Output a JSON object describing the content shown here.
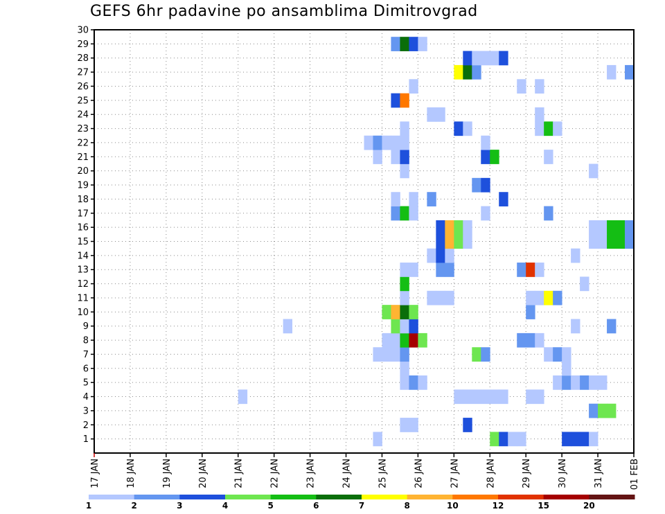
{
  "chart_data": {
    "type": "heatmap",
    "title": "GEFS 6hr padavine po ansamblima Dimitrovgrad",
    "xlabel": "",
    "ylabel": "",
    "x_ticks": [
      "17 JAN",
      "18 JAN",
      "19 JAN",
      "20 JAN",
      "21 JAN",
      "22 JAN",
      "23 JAN",
      "24 JAN",
      "25 JAN",
      "26 JAN",
      "27 JAN",
      "28 JAN",
      "29 JAN",
      "30 JAN",
      "31 JAN",
      "01 FEB"
    ],
    "y_ticks": [
      1,
      2,
      3,
      4,
      5,
      6,
      7,
      8,
      9,
      10,
      11,
      12,
      13,
      14,
      15,
      16,
      17,
      18,
      19,
      20,
      21,
      22,
      23,
      24,
      25,
      26,
      27,
      28,
      29,
      30
    ],
    "xlim_days": [
      0,
      15
    ],
    "ylim": [
      0,
      30
    ],
    "time_step_hours": 6,
    "colorbar": {
      "labels": [
        "1",
        "2",
        "3",
        "4",
        "5",
        "6",
        "7",
        "8",
        "10",
        "12",
        "15",
        "20"
      ],
      "colors": [
        "#b4c8ff",
        "#6496f0",
        "#1e50dc",
        "#6ee650",
        "#14be14",
        "#0a6e0a",
        "#ffff00",
        "#ffb432",
        "#ff7800",
        "#e13200",
        "#a50000",
        "#641414"
      ]
    },
    "cell_units": "x = day offset from 17 JAN 00Z (6h steps); y = ensemble member; c = color class index (0..11)",
    "cells": [
      {
        "x": 7.75,
        "y": 1,
        "c": 0
      },
      {
        "x": 11.0,
        "y": 1,
        "c": 3
      },
      {
        "x": 11.25,
        "y": 1,
        "c": 2
      },
      {
        "x": 11.5,
        "y": 1,
        "c": 0
      },
      {
        "x": 11.75,
        "y": 1,
        "c": 0
      },
      {
        "x": 13.0,
        "y": 1,
        "c": 2
      },
      {
        "x": 13.25,
        "y": 1,
        "c": 2
      },
      {
        "x": 13.5,
        "y": 1,
        "c": 2
      },
      {
        "x": 13.75,
        "y": 1,
        "c": 0
      },
      {
        "x": 8.5,
        "y": 2,
        "c": 0
      },
      {
        "x": 8.75,
        "y": 2,
        "c": 0
      },
      {
        "x": 10.25,
        "y": 2,
        "c": 2
      },
      {
        "x": 13.75,
        "y": 3,
        "c": 1
      },
      {
        "x": 14.0,
        "y": 3,
        "c": 3
      },
      {
        "x": 14.25,
        "y": 3,
        "c": 3
      },
      {
        "x": 4.0,
        "y": 4,
        "c": 0
      },
      {
        "x": 10.0,
        "y": 4,
        "c": 0
      },
      {
        "x": 10.25,
        "y": 4,
        "c": 0
      },
      {
        "x": 10.5,
        "y": 4,
        "c": 0
      },
      {
        "x": 10.75,
        "y": 4,
        "c": 0
      },
      {
        "x": 11.0,
        "y": 4,
        "c": 0
      },
      {
        "x": 11.25,
        "y": 4,
        "c": 0
      },
      {
        "x": 12.0,
        "y": 4,
        "c": 0
      },
      {
        "x": 12.25,
        "y": 4,
        "c": 0
      },
      {
        "x": 8.5,
        "y": 5,
        "c": 0
      },
      {
        "x": 8.75,
        "y": 5,
        "c": 1
      },
      {
        "x": 9.0,
        "y": 5,
        "c": 0
      },
      {
        "x": 12.75,
        "y": 5,
        "c": 0
      },
      {
        "x": 13.0,
        "y": 5,
        "c": 1
      },
      {
        "x": 13.25,
        "y": 5,
        "c": 0
      },
      {
        "x": 13.5,
        "y": 5,
        "c": 1
      },
      {
        "x": 13.75,
        "y": 5,
        "c": 0
      },
      {
        "x": 14.0,
        "y": 5,
        "c": 0
      },
      {
        "x": 8.5,
        "y": 6,
        "c": 0
      },
      {
        "x": 13.0,
        "y": 6,
        "c": 0
      },
      {
        "x": 7.75,
        "y": 7,
        "c": 0
      },
      {
        "x": 8.0,
        "y": 7,
        "c": 0
      },
      {
        "x": 8.25,
        "y": 7,
        "c": 0
      },
      {
        "x": 8.5,
        "y": 7,
        "c": 1
      },
      {
        "x": 10.5,
        "y": 7,
        "c": 3
      },
      {
        "x": 10.75,
        "y": 7,
        "c": 1
      },
      {
        "x": 12.5,
        "y": 7,
        "c": 0
      },
      {
        "x": 12.75,
        "y": 7,
        "c": 1
      },
      {
        "x": 13.0,
        "y": 7,
        "c": 0
      },
      {
        "x": 8.0,
        "y": 8,
        "c": 0
      },
      {
        "x": 8.25,
        "y": 8,
        "c": 0
      },
      {
        "x": 8.5,
        "y": 8,
        "c": 4
      },
      {
        "x": 8.75,
        "y": 8,
        "c": 10
      },
      {
        "x": 9.0,
        "y": 8,
        "c": 3
      },
      {
        "x": 11.75,
        "y": 8,
        "c": 1
      },
      {
        "x": 12.0,
        "y": 8,
        "c": 1
      },
      {
        "x": 12.25,
        "y": 8,
        "c": 0
      },
      {
        "x": 5.25,
        "y": 9,
        "c": 0
      },
      {
        "x": 8.25,
        "y": 9,
        "c": 3
      },
      {
        "x": 8.5,
        "y": 9,
        "c": 0
      },
      {
        "x": 8.75,
        "y": 9,
        "c": 2
      },
      {
        "x": 13.25,
        "y": 9,
        "c": 0
      },
      {
        "x": 14.25,
        "y": 9,
        "c": 1
      },
      {
        "x": 8.0,
        "y": 10,
        "c": 3
      },
      {
        "x": 8.25,
        "y": 10,
        "c": 7
      },
      {
        "x": 8.5,
        "y": 10,
        "c": 5
      },
      {
        "x": 8.75,
        "y": 10,
        "c": 3
      },
      {
        "x": 12.0,
        "y": 10,
        "c": 1
      },
      {
        "x": 8.5,
        "y": 11,
        "c": 0
      },
      {
        "x": 9.25,
        "y": 11,
        "c": 0
      },
      {
        "x": 9.5,
        "y": 11,
        "c": 0
      },
      {
        "x": 9.75,
        "y": 11,
        "c": 0
      },
      {
        "x": 12.0,
        "y": 11,
        "c": 0
      },
      {
        "x": 12.25,
        "y": 11,
        "c": 0
      },
      {
        "x": 12.5,
        "y": 11,
        "c": 6
      },
      {
        "x": 12.75,
        "y": 11,
        "c": 1
      },
      {
        "x": 8.5,
        "y": 12,
        "c": 4
      },
      {
        "x": 13.5,
        "y": 12,
        "c": 0
      },
      {
        "x": 8.5,
        "y": 13,
        "c": 0
      },
      {
        "x": 8.75,
        "y": 13,
        "c": 0
      },
      {
        "x": 9.5,
        "y": 13,
        "c": 1
      },
      {
        "x": 9.75,
        "y": 13,
        "c": 1
      },
      {
        "x": 11.75,
        "y": 13,
        "c": 1
      },
      {
        "x": 12.0,
        "y": 13,
        "c": 9
      },
      {
        "x": 12.25,
        "y": 13,
        "c": 0
      },
      {
        "x": 9.25,
        "y": 14,
        "c": 0
      },
      {
        "x": 9.5,
        "y": 14,
        "c": 2
      },
      {
        "x": 9.75,
        "y": 14,
        "c": 0
      },
      {
        "x": 13.25,
        "y": 14,
        "c": 0
      },
      {
        "x": 9.5,
        "y": 15,
        "c": 2
      },
      {
        "x": 9.75,
        "y": 15,
        "c": 7
      },
      {
        "x": 10.0,
        "y": 15,
        "c": 3
      },
      {
        "x": 10.25,
        "y": 15,
        "c": 0
      },
      {
        "x": 13.75,
        "y": 15,
        "c": 0
      },
      {
        "x": 14.0,
        "y": 15,
        "c": 0
      },
      {
        "x": 14.25,
        "y": 15,
        "c": 4
      },
      {
        "x": 14.5,
        "y": 15,
        "c": 4
      },
      {
        "x": 14.75,
        "y": 15,
        "c": 1
      },
      {
        "x": 9.5,
        "y": 16,
        "c": 2
      },
      {
        "x": 9.75,
        "y": 16,
        "c": 7
      },
      {
        "x": 10.0,
        "y": 16,
        "c": 3
      },
      {
        "x": 10.25,
        "y": 16,
        "c": 0
      },
      {
        "x": 13.75,
        "y": 16,
        "c": 0
      },
      {
        "x": 14.0,
        "y": 16,
        "c": 0
      },
      {
        "x": 14.25,
        "y": 16,
        "c": 4
      },
      {
        "x": 14.5,
        "y": 16,
        "c": 4
      },
      {
        "x": 14.75,
        "y": 16,
        "c": 1
      },
      {
        "x": 8.25,
        "y": 17,
        "c": 1
      },
      {
        "x": 8.5,
        "y": 17,
        "c": 4
      },
      {
        "x": 8.75,
        "y": 17,
        "c": 0
      },
      {
        "x": 10.75,
        "y": 17,
        "c": 0
      },
      {
        "x": 12.5,
        "y": 17,
        "c": 1
      },
      {
        "x": 8.25,
        "y": 18,
        "c": 0
      },
      {
        "x": 8.75,
        "y": 18,
        "c": 0
      },
      {
        "x": 9.25,
        "y": 18,
        "c": 1
      },
      {
        "x": 11.25,
        "y": 18,
        "c": 2
      },
      {
        "x": 10.5,
        "y": 19,
        "c": 1
      },
      {
        "x": 10.75,
        "y": 19,
        "c": 2
      },
      {
        "x": 8.5,
        "y": 20,
        "c": 0
      },
      {
        "x": 13.75,
        "y": 20,
        "c": 0
      },
      {
        "x": 7.75,
        "y": 21,
        "c": 0
      },
      {
        "x": 8.25,
        "y": 21,
        "c": 0
      },
      {
        "x": 8.5,
        "y": 21,
        "c": 2
      },
      {
        "x": 10.75,
        "y": 21,
        "c": 2
      },
      {
        "x": 11.0,
        "y": 21,
        "c": 4
      },
      {
        "x": 12.5,
        "y": 21,
        "c": 0
      },
      {
        "x": 7.5,
        "y": 22,
        "c": 0
      },
      {
        "x": 7.75,
        "y": 22,
        "c": 1
      },
      {
        "x": 8.0,
        "y": 22,
        "c": 0
      },
      {
        "x": 8.25,
        "y": 22,
        "c": 0
      },
      {
        "x": 8.5,
        "y": 22,
        "c": 0
      },
      {
        "x": 10.75,
        "y": 22,
        "c": 0
      },
      {
        "x": 8.5,
        "y": 23,
        "c": 0
      },
      {
        "x": 10.0,
        "y": 23,
        "c": 2
      },
      {
        "x": 10.25,
        "y": 23,
        "c": 0
      },
      {
        "x": 12.25,
        "y": 23,
        "c": 0
      },
      {
        "x": 12.5,
        "y": 23,
        "c": 4
      },
      {
        "x": 12.75,
        "y": 23,
        "c": 0
      },
      {
        "x": 9.25,
        "y": 24,
        "c": 0
      },
      {
        "x": 9.5,
        "y": 24,
        "c": 0
      },
      {
        "x": 12.25,
        "y": 24,
        "c": 0
      },
      {
        "x": 8.25,
        "y": 25,
        "c": 2
      },
      {
        "x": 8.5,
        "y": 25,
        "c": 8
      },
      {
        "x": 8.75,
        "y": 26,
        "c": 0
      },
      {
        "x": 11.75,
        "y": 26,
        "c": 0
      },
      {
        "x": 12.25,
        "y": 26,
        "c": 0
      },
      {
        "x": 10.0,
        "y": 27,
        "c": 6
      },
      {
        "x": 10.25,
        "y": 27,
        "c": 5
      },
      {
        "x": 10.5,
        "y": 27,
        "c": 1
      },
      {
        "x": 14.25,
        "y": 27,
        "c": 0
      },
      {
        "x": 14.75,
        "y": 27,
        "c": 1
      },
      {
        "x": 10.25,
        "y": 28,
        "c": 2
      },
      {
        "x": 10.5,
        "y": 28,
        "c": 0
      },
      {
        "x": 10.75,
        "y": 28,
        "c": 0
      },
      {
        "x": 11.0,
        "y": 28,
        "c": 0
      },
      {
        "x": 11.25,
        "y": 28,
        "c": 2
      },
      {
        "x": 8.25,
        "y": 29,
        "c": 1
      },
      {
        "x": 8.5,
        "y": 29,
        "c": 5
      },
      {
        "x": 8.75,
        "y": 29,
        "c": 2
      },
      {
        "x": 9.0,
        "y": 29,
        "c": 0
      }
    ]
  }
}
